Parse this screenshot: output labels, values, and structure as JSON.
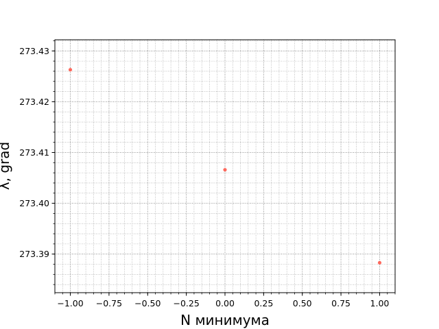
{
  "chart_data": {
    "type": "scatter",
    "title": "",
    "xlabel": "N минимума",
    "ylabel": "λ, grad",
    "xlim": [
      -1.1,
      1.1
    ],
    "ylim": [
      273.3824,
      273.4322
    ],
    "x_ticks": [
      "−1.00",
      "−0.75",
      "−0.50",
      "−0.25",
      "0.00",
      "0.25",
      "0.50",
      "0.75",
      "1.00"
    ],
    "y_ticks": [
      "273.39",
      "273.40",
      "273.41",
      "273.42",
      "273.43"
    ],
    "grid": true,
    "grid_style": "dotted, major and minor",
    "series": [
      {
        "color": "#ff5a4d",
        "points": [
          {
            "x": -1.0,
            "y": 273.4263
          },
          {
            "x": 0.0,
            "y": 273.4066
          },
          {
            "x": 1.0,
            "y": 273.3883
          }
        ]
      }
    ]
  }
}
